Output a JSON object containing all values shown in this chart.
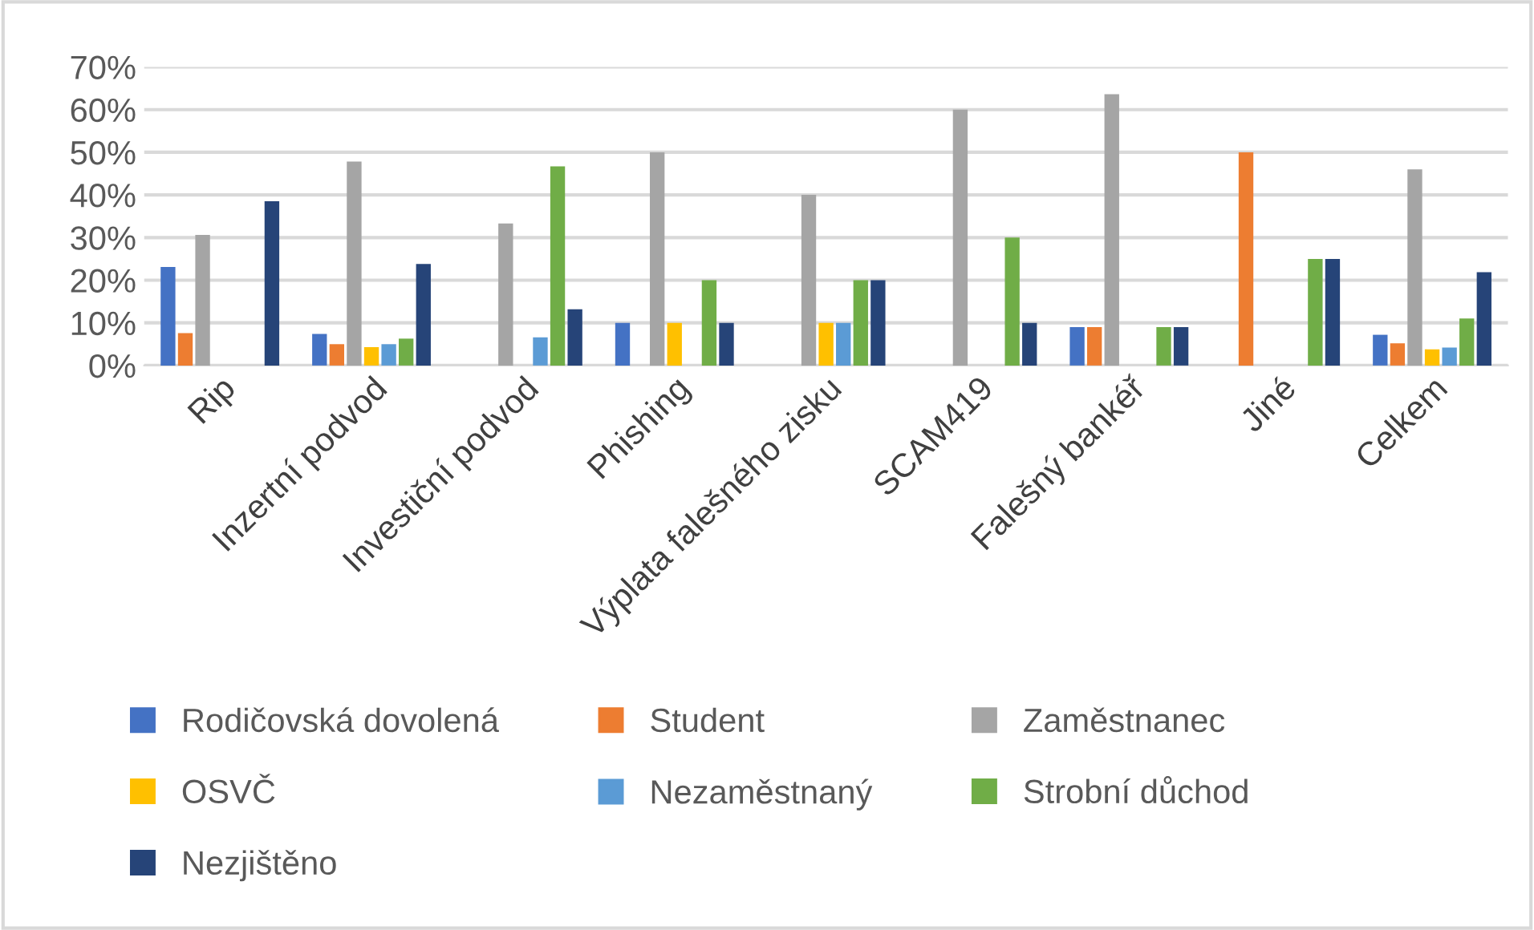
{
  "chart_data": {
    "type": "bar",
    "categories": [
      "Rip",
      "Inzertní podvod",
      "Investiční podvod",
      "Phishing",
      "Výplata falešného zisku",
      "SCAM419",
      "Falešný bankéř",
      "Jiné",
      "Celkem"
    ],
    "series": [
      {
        "name": "Rodičovská dovolená",
        "color": "#4472c4",
        "values": [
          23.1,
          7.4,
          null,
          10,
          null,
          null,
          9.0,
          null,
          7.2
        ]
      },
      {
        "name": "Student",
        "color": "#ed7d31",
        "values": [
          7.6,
          5.0,
          null,
          null,
          null,
          null,
          9.0,
          50,
          5.2
        ]
      },
      {
        "name": "Zaměstnanec",
        "color": "#a5a5a5",
        "values": [
          30.6,
          47.8,
          33.3,
          50,
          40,
          60,
          63.6,
          null,
          46.0
        ]
      },
      {
        "name": "OSVČ",
        "color": "#ffc000",
        "values": [
          null,
          4.3,
          null,
          10,
          10,
          null,
          null,
          null,
          3.8
        ]
      },
      {
        "name": "Nezaměstnaný",
        "color": "#5b9bd5",
        "values": [
          null,
          5.0,
          6.6,
          null,
          10,
          null,
          null,
          null,
          4.2
        ]
      },
      {
        "name": "Strobní důchod",
        "color": "#70ad47",
        "values": [
          null,
          6.3,
          46.7,
          20,
          20,
          30,
          9.0,
          25,
          11.0
        ]
      },
      {
        "name": "Nezjištěno",
        "color": "#264478",
        "values": [
          38.5,
          23.8,
          13.2,
          10,
          20,
          10,
          9.0,
          25,
          21.9
        ]
      }
    ],
    "ylim": [
      0,
      70
    ],
    "yticks": [
      {
        "value": 0,
        "label": "0%"
      },
      {
        "value": 10,
        "label": "10%"
      },
      {
        "value": 20,
        "label": "20%"
      },
      {
        "value": 30,
        "label": "30%"
      },
      {
        "value": 40,
        "label": "40%"
      },
      {
        "value": 50,
        "label": "50%"
      },
      {
        "value": 60,
        "label": "60%"
      },
      {
        "value": 70,
        "label": "70%"
      }
    ],
    "grid": "y",
    "legend": "bottom"
  }
}
